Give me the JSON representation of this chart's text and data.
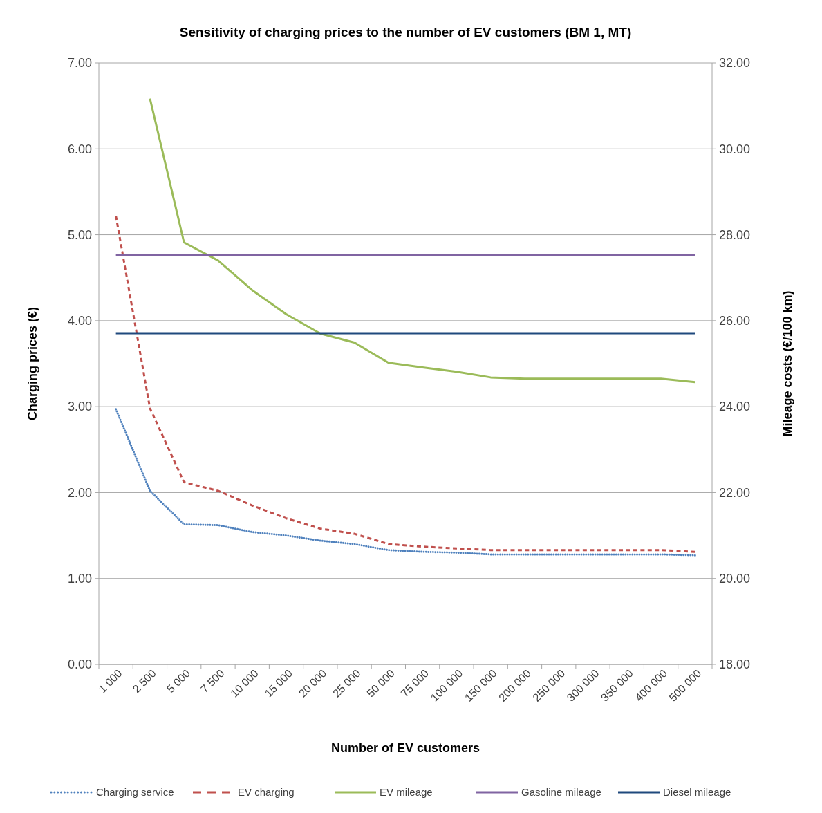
{
  "chart_data": {
    "type": "line",
    "title": "Sensitivity of charging prices to the number of EV customers (BM 1, MT)",
    "xlabel": "Number of EV customers",
    "ylabel": "Charging prices (€)",
    "y2label": "Mileage costs (€/100 km)",
    "categories": [
      "1 000",
      "2 500",
      "5 000",
      "7 500",
      "10 000",
      "15 000",
      "20 000",
      "25 000",
      "50 000",
      "75 000",
      "100 000",
      "150 000",
      "200 000",
      "250 000",
      "300 000",
      "350 000",
      "400 000",
      "500 000"
    ],
    "ylim": [
      0,
      7
    ],
    "yticks": [
      {
        "value": 0,
        "label": "0.00"
      },
      {
        "value": 1,
        "label": "1.00"
      },
      {
        "value": 2,
        "label": "2.00"
      },
      {
        "value": 3,
        "label": "3.00"
      },
      {
        "value": 4,
        "label": "4.00"
      },
      {
        "value": 5,
        "label": "5.00"
      },
      {
        "value": 6,
        "label": "6.00"
      },
      {
        "value": 7,
        "label": "7.00"
      }
    ],
    "y2lim": [
      18,
      32
    ],
    "y2ticks": [
      {
        "value": 18,
        "label": "18.00"
      },
      {
        "value": 20,
        "label": "20.00"
      },
      {
        "value": 22,
        "label": "22.00"
      },
      {
        "value": 24,
        "label": "24.00"
      },
      {
        "value": 26,
        "label": "26.00"
      },
      {
        "value": 28,
        "label": "28.00"
      },
      {
        "value": 30,
        "label": "30.00"
      },
      {
        "value": 32,
        "label": "32.00"
      }
    ],
    "grid": "y",
    "legend": "bottom",
    "marker": "none",
    "series": [
      {
        "name": "Charging service",
        "color": "#4f81bd",
        "line_style": "dotted",
        "values": [
          2.97,
          2.02,
          1.63,
          1.62,
          1.54,
          1.5,
          1.44,
          1.4,
          1.33,
          1.31,
          1.3,
          1.28,
          1.28,
          1.28,
          1.28,
          1.28,
          1.28,
          1.27
        ]
      },
      {
        "name": "EV charging",
        "color": "#c0504d",
        "line_style": "dashed",
        "values": [
          5.22,
          2.98,
          2.12,
          2.02,
          1.85,
          1.7,
          1.58,
          1.52,
          1.4,
          1.37,
          1.35,
          1.33,
          1.33,
          1.33,
          1.33,
          1.33,
          1.33,
          1.31
        ]
      },
      {
        "name": "EV mileage",
        "color": "#9bbb59",
        "line_style": "solid",
        "axis": "y2",
        "values": [
          null,
          31.17,
          27.82,
          27.4,
          26.71,
          26.15,
          25.7,
          25.49,
          25.02,
          24.91,
          24.81,
          24.68,
          24.65,
          24.65,
          24.65,
          24.65,
          24.65,
          24.57
        ]
      },
      {
        "name": "Gasoline mileage",
        "color": "#8064a2",
        "line_style": "solid",
        "axis": "y2",
        "values": [
          27.53,
          27.53,
          27.53,
          27.53,
          27.53,
          27.53,
          27.53,
          27.53,
          27.53,
          27.53,
          27.53,
          27.53,
          27.53,
          27.53,
          27.53,
          27.53,
          27.53,
          27.53
        ]
      },
      {
        "name": "Diesel mileage",
        "color": "#1f497d",
        "line_style": "solid",
        "axis": "y2",
        "values": [
          25.71,
          25.71,
          25.71,
          25.71,
          25.71,
          25.71,
          25.71,
          25.71,
          25.71,
          25.71,
          25.71,
          25.71,
          25.71,
          25.71,
          25.71,
          25.71,
          25.71,
          25.71
        ]
      }
    ]
  }
}
